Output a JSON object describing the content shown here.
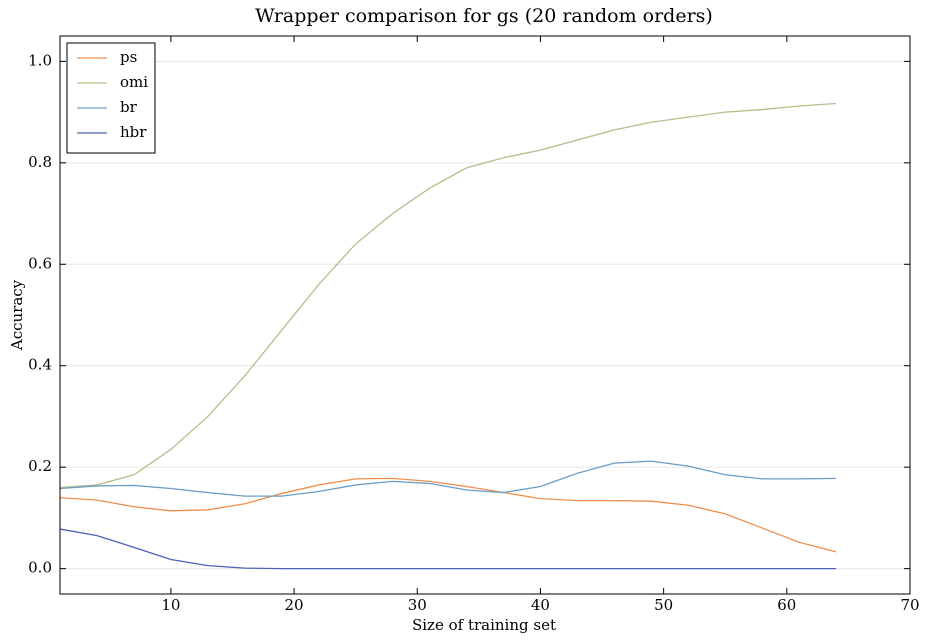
{
  "chart_data": {
    "type": "line",
    "title": "Wrapper comparison for gs (20 random orders)",
    "xlabel": "Size of training set",
    "ylabel": "Accuracy",
    "x": [
      1,
      4,
      7,
      10,
      13,
      16,
      19,
      22,
      25,
      28,
      31,
      34,
      37,
      40,
      43,
      46,
      49,
      52,
      55,
      58,
      61,
      64
    ],
    "series": [
      {
        "name": "ps",
        "color": "#ee8f4c",
        "values": [
          0.14,
          0.135,
          0.122,
          0.114,
          0.116,
          0.128,
          0.148,
          0.165,
          0.177,
          0.178,
          0.172,
          0.162,
          0.15,
          0.138,
          0.134,
          0.134,
          0.133,
          0.125,
          0.108,
          0.08,
          0.052,
          0.033
        ]
      },
      {
        "name": "omi",
        "color": "#b3bf8b",
        "values": [
          0.16,
          0.165,
          0.185,
          0.235,
          0.3,
          0.38,
          0.47,
          0.56,
          0.64,
          0.7,
          0.75,
          0.79,
          0.81,
          0.825,
          0.845,
          0.865,
          0.88,
          0.89,
          0.9,
          0.905,
          0.912,
          0.917
        ]
      },
      {
        "name": "br",
        "color": "#6d9dc6",
        "values": [
          0.158,
          0.163,
          0.164,
          0.158,
          0.15,
          0.143,
          0.143,
          0.152,
          0.165,
          0.172,
          0.168,
          0.155,
          0.15,
          0.162,
          0.188,
          0.208,
          0.212,
          0.202,
          0.185,
          0.177,
          0.177,
          0.178
        ]
      },
      {
        "name": "hbr",
        "color": "#4a62b6",
        "values": [
          0.078,
          0.065,
          0.042,
          0.018,
          0.006,
          0.001,
          0,
          0,
          0,
          0,
          0,
          0,
          0,
          0,
          0,
          0,
          0,
          0,
          0,
          0,
          0,
          0
        ]
      }
    ],
    "xlim": [
      1,
      70
    ],
    "ylim": [
      -0.05,
      1.05
    ],
    "xticks": [
      10,
      20,
      30,
      40,
      50,
      60,
      70
    ],
    "yticks": [
      {
        "value": 0,
        "label": "0.0"
      },
      {
        "value": 0.2,
        "label": "0.2"
      },
      {
        "value": 0.4,
        "label": "0.4"
      },
      {
        "value": 0.6,
        "label": "0.6"
      },
      {
        "value": 0.8,
        "label": "0.8"
      },
      {
        "value": 1,
        "label": "1.0"
      }
    ],
    "grid": true,
    "legend": "upper-left"
  }
}
